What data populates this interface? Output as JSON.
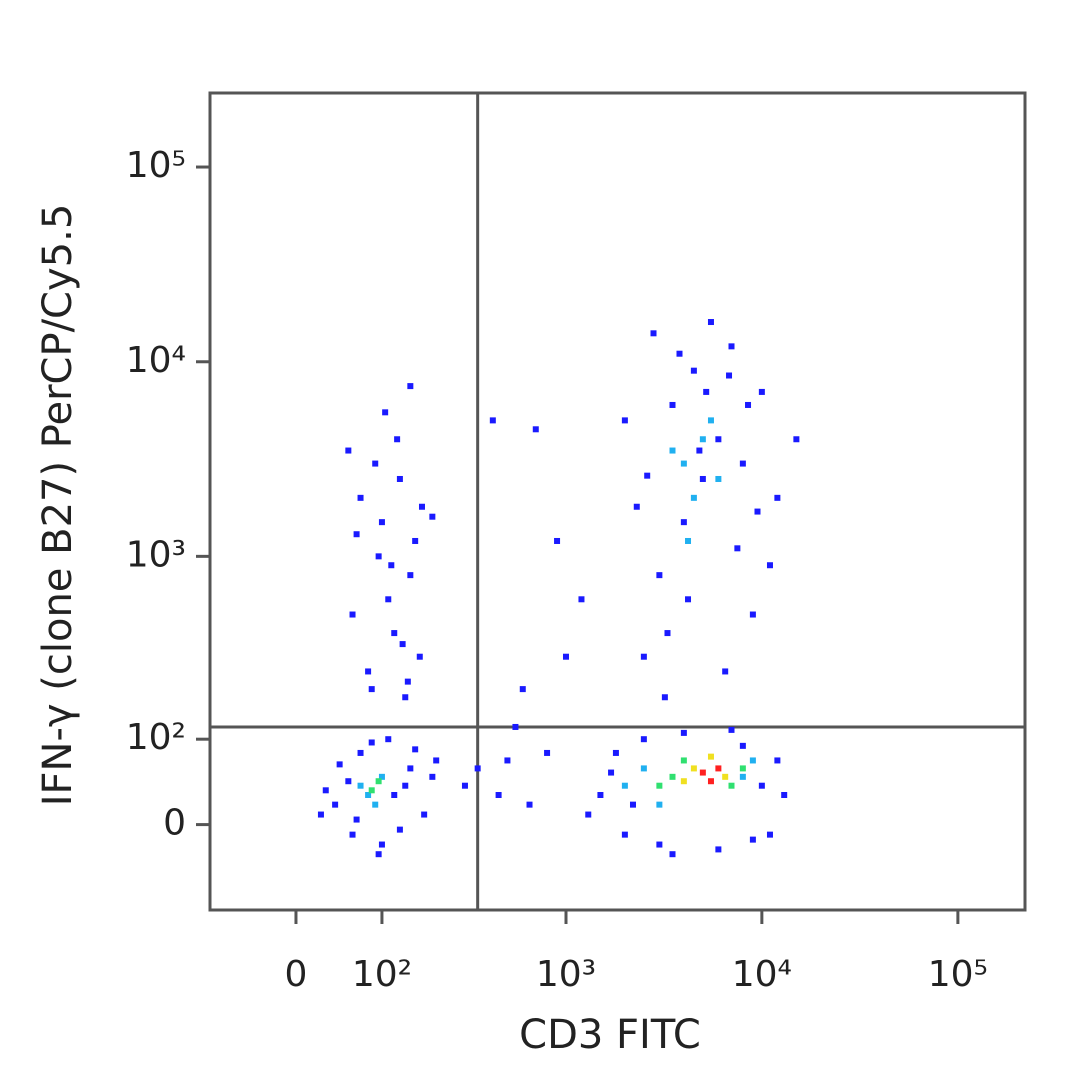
{
  "chart_data": {
    "type": "scatter",
    "xlabel": "CD3 FITC",
    "ylabel": "IFN-γ (clone B27) PerCP/Cy5.5",
    "xscale": "biexponential",
    "yscale": "biexponential",
    "xlim": [
      -100,
      220000
    ],
    "ylim": [
      -100,
      240000
    ],
    "xticks": [
      0,
      {
        "value": 100,
        "label": "10²"
      },
      {
        "value": 1000,
        "label": "10³"
      },
      {
        "value": 10000,
        "label": "10⁴"
      },
      {
        "value": 100000,
        "label": "10⁵"
      }
    ],
    "yticks": [
      0,
      {
        "value": 100,
        "label": "10²"
      },
      {
        "value": 1000,
        "label": "10³"
      },
      {
        "value": 10000,
        "label": "10⁴"
      },
      {
        "value": 100000,
        "label": "10⁵"
      }
    ],
    "gates": {
      "x": 350,
      "y": 120
    },
    "series": [
      {
        "color": "#1a1aff",
        "x": [
          40,
          60,
          120,
          150,
          70,
          55,
          180,
          200,
          100,
          85,
          45,
          130,
          160,
          30,
          110,
          65,
          140,
          210,
          25,
          95,
          80,
          120,
          150,
          100,
          130,
          90,
          160,
          110,
          70,
          140,
          170,
          60,
          125,
          105,
          150,
          95,
          135,
          85,
          175,
          115,
          65,
          145,
          200,
          55,
          300,
          350,
          450,
          500,
          420,
          700,
          900,
          600,
          800,
          650,
          1000,
          1200,
          550,
          1500,
          1800,
          2000,
          2500,
          3000,
          4000,
          6000,
          8000,
          10000,
          12000,
          11000,
          1700,
          2200,
          9000,
          7000,
          3500,
          13000,
          1300,
          2500,
          3000,
          4000,
          5000,
          6000,
          3500,
          4500,
          7000,
          2000,
          8000,
          10000,
          12000,
          2800,
          5500,
          9000,
          6500,
          3200,
          4200,
          7500,
          11000,
          2300,
          15000,
          5200,
          3800,
          6800,
          8500,
          4800,
          2600,
          9500,
          3300
        ],
        "values": [
          20,
          -10,
          30,
          60,
          80,
          45,
          10,
          50,
          -20,
          95,
          65,
          -5,
          85,
          35,
          100,
          5,
          40,
          70,
          10,
          -30,
          250,
          400,
          800,
          1500,
          2500,
          3000,
          1200,
          600,
          2000,
          180,
          300,
          500,
          4000,
          5500,
          7500,
          1000,
          350,
          200,
          1800,
          900,
          1300,
          220,
          1600,
          3500,
          40,
          60,
          30,
          70,
          5000,
          4500,
          1200,
          200,
          80,
          20,
          300,
          600,
          120,
          30,
          80,
          -10,
          100,
          -20,
          110,
          -25,
          90,
          40,
          70,
          -10,
          55,
          20,
          -15,
          115,
          -30,
          30,
          10,
          300,
          800,
          1500,
          2500,
          4000,
          6000,
          9000,
          12000,
          5000,
          3000,
          7000,
          2000,
          14000,
          16000,
          500,
          250,
          180,
          600,
          1100,
          900,
          1800,
          4000,
          7000,
          11000,
          8500,
          6000,
          3500,
          2600,
          1700,
          400
        ]
      },
      {
        "color": "#20b0f0",
        "x": [
          80,
          100,
          90,
          70,
          4000,
          5000,
          4500,
          3500,
          6000,
          5500,
          4200,
          2500,
          3000,
          8000,
          9000,
          2000
        ],
        "values": [
          30,
          50,
          20,
          40,
          3000,
          4000,
          2000,
          3500,
          2500,
          5000,
          1200,
          60,
          20,
          50,
          70,
          40
        ]
      },
      {
        "color": "#30e070",
        "x": [
          85,
          95,
          3500,
          4000,
          7000,
          3000,
          8000
        ],
        "values": [
          35,
          45,
          50,
          70,
          40,
          40,
          60
        ]
      },
      {
        "color": "#f0e020",
        "x": [
          4500,
          6500,
          5500,
          4000
        ],
        "values": [
          60,
          50,
          75,
          45
        ]
      },
      {
        "color": "#ff2020",
        "x": [
          5000,
          6000,
          5500
        ],
        "values": [
          55,
          60,
          45
        ]
      }
    ]
  }
}
